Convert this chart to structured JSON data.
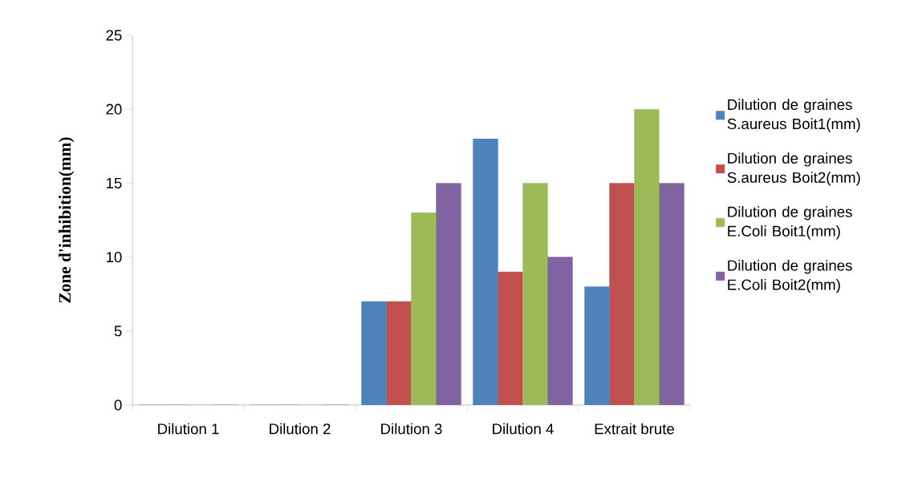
{
  "chart_data": {
    "type": "bar",
    "ylabel": "Zone d'inhibition(mm)",
    "categories": [
      "Dilution 1",
      "Dilution 2",
      "Dilution 3",
      "Dilution 4",
      "Extrait brute"
    ],
    "series": [
      {
        "name": "Dilution de graines S.aureus Boit1(mm)",
        "color": "#4f81bd",
        "values": [
          0,
          0,
          7,
          18,
          8
        ]
      },
      {
        "name": "Dilution de graines S.aureus Boit2(mm)",
        "color": "#c0504d",
        "values": [
          0,
          0,
          7,
          9,
          15
        ]
      },
      {
        "name": "Dilution de graines E.Coli Boit1(mm)",
        "color": "#9bbb59",
        "values": [
          0,
          0,
          13,
          15,
          20
        ]
      },
      {
        "name": "Dilution de graines E.Coli Boit2(mm)",
        "color": "#8064a2",
        "values": [
          0,
          0,
          15,
          10,
          15
        ]
      }
    ],
    "ylim": [
      0,
      25
    ],
    "yticks": [
      0,
      5,
      10,
      15,
      20,
      25
    ],
    "grid": false,
    "legend": "right"
  }
}
